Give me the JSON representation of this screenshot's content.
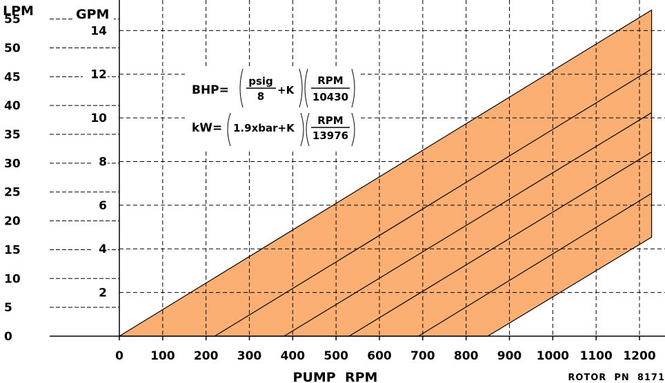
{
  "chart_data": {
    "type": "area",
    "xlabel": "PUMP  RPM",
    "x_ticks": [
      0,
      100,
      200,
      300,
      400,
      500,
      600,
      700,
      800,
      900,
      1000,
      1100,
      1200
    ],
    "xlim": [
      0,
      1200
    ],
    "left_axis": {
      "label": "LPM",
      "ticks": [
        0,
        5,
        10,
        15,
        20,
        25,
        30,
        35,
        40,
        45,
        50,
        55
      ],
      "ylim": [
        0,
        58.3
      ]
    },
    "right_axis": {
      "label": "GPM",
      "ticks": [
        2,
        4,
        6,
        8,
        10,
        12,
        14
      ],
      "ylim": [
        0,
        15.4
      ]
    },
    "band": {
      "color": "#FCAF72",
      "upper": {
        "x": [
          0,
          1200
        ],
        "y_gpm": [
          0,
          14.6
        ]
      },
      "lower": {
        "x": [
          850,
          1200
        ],
        "y_gpm": [
          0,
          4.2
        ]
      }
    },
    "pressure_lines": [
      {
        "x": [
          220,
          1200
        ],
        "y_gpm": [
          0,
          11.9
        ]
      },
      {
        "x": [
          380,
          1200
        ],
        "y_gpm": [
          0,
          9.9
        ]
      },
      {
        "x": [
          530,
          1200
        ],
        "y_gpm": [
          0,
          8.1
        ]
      },
      {
        "x": [
          690,
          1200
        ],
        "y_gpm": [
          0,
          6.2
        ]
      }
    ],
    "grid": true
  },
  "formulas": {
    "bhp": {
      "lhs": "BHP=",
      "num1": "psig",
      "den1": "8",
      "plus": "+K",
      "num2": "RPM",
      "den2": "10430"
    },
    "kw": {
      "lhs": "kW=",
      "term": "1.9xbar+K",
      "num2": "RPM",
      "den2": "13976"
    }
  },
  "footer": "ROTOR  PN  8171"
}
